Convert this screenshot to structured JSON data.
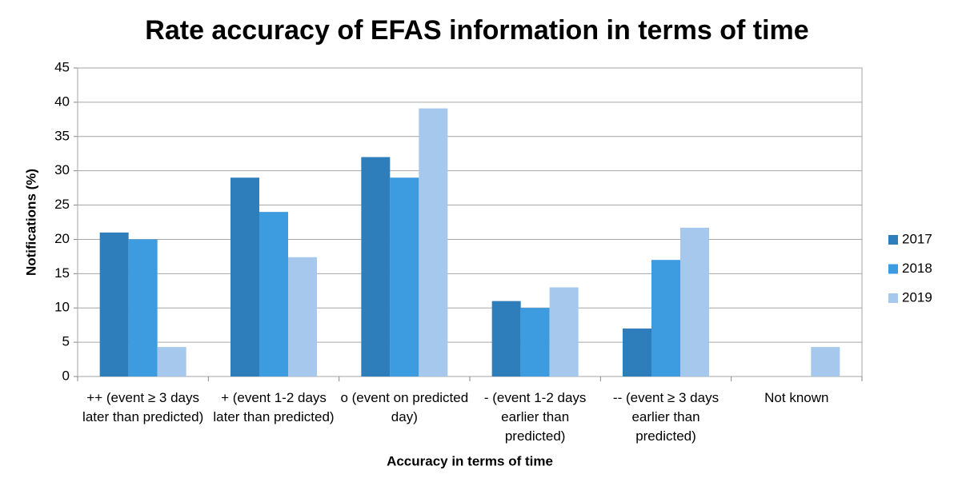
{
  "chart_data": {
    "type": "bar",
    "title": "Rate accuracy of EFAS information in terms of time",
    "x_label": "Accuracy in terms of time",
    "y_label": "Notifications (%)",
    "categories": [
      "++ (event ≥ 3 days later than predicted)",
      "+ (event 1-2 days later than predicted)",
      "o (event on predicted day)",
      "- (event 1-2 days earlier than predicted)",
      "-- (event ≥ 3 days earlier than predicted)",
      "Not known"
    ],
    "series": [
      {
        "name": "2017",
        "color": "#2e7ebc",
        "values": [
          21,
          29,
          32,
          11,
          7,
          0
        ]
      },
      {
        "name": "2018",
        "color": "#3d9be0",
        "values": [
          20,
          24,
          29,
          10,
          17,
          0
        ]
      },
      {
        "name": "2019",
        "color": "#a6c8ec",
        "values": [
          4.3,
          17.4,
          39.1,
          13,
          21.7,
          4.3
        ]
      }
    ],
    "ylim": [
      0,
      45
    ],
    "yticks": [
      0,
      5,
      10,
      15,
      20,
      25,
      30,
      35,
      40,
      45
    ],
    "grid": true,
    "legend": "right"
  }
}
